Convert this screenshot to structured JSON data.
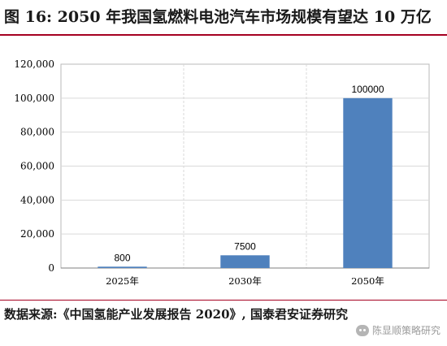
{
  "figure": {
    "title": "图 16:  2050 年我国氢燃料电池汽车市场规模有望达 10 万亿",
    "source": "数据来源:《中国氢能产业发展报告 2020》, 国泰君安证券研究",
    "watermark": "陈显顺策略研究",
    "accent_color": "#a50021"
  },
  "chart_data": {
    "type": "bar",
    "categories": [
      "2025年",
      "2030年",
      "2050年"
    ],
    "values": [
      800,
      7500,
      100000
    ],
    "value_labels": [
      "800",
      "7500",
      "100000"
    ],
    "y_ticks": [
      0,
      20000,
      40000,
      60000,
      80000,
      100000,
      120000
    ],
    "y_tick_labels": [
      "0",
      "20,000",
      "40,000",
      "60,000",
      "80,000",
      "100,000",
      "120,000"
    ],
    "ylim": [
      0,
      120000
    ],
    "grid": true,
    "bar_color": "#4f81bd",
    "xlabel": "",
    "ylabel": ""
  }
}
